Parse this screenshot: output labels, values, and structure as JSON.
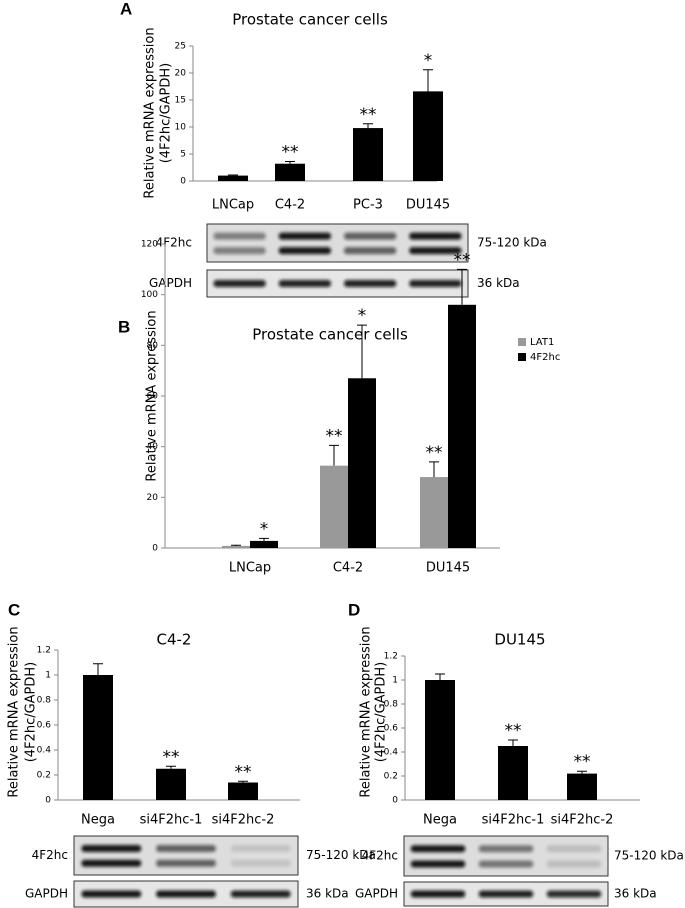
{
  "chart_data": [
    {
      "type": "bar",
      "panel": "A",
      "title": "Prostate cancer cells",
      "ylabel": [
        "Relative mRNA expression",
        "(4F2hc/GAPDH)"
      ],
      "categories": [
        "LNCap",
        "C4-2",
        "PC-3",
        "DU145"
      ],
      "values": [
        1,
        3.2,
        9.8,
        16.6
      ],
      "errors": [
        0.1,
        0.4,
        0.8,
        4
      ],
      "significance": [
        null,
        "**",
        "**",
        "*"
      ],
      "color": "#000000",
      "ylim": [
        0,
        25
      ],
      "yticks": [
        0,
        5,
        10,
        15,
        20,
        25
      ],
      "blots": [
        {
          "label": "4F2hc",
          "size": "75-120 kDa"
        },
        {
          "label": "GAPDH",
          "size": "36 kDa"
        }
      ]
    },
    {
      "type": "bar",
      "panel": "B",
      "title": "Prostate cancer cells",
      "ylabel": [
        "Relative mRNA expression"
      ],
      "categories": [
        "LNCap",
        "C4-2",
        "DU145"
      ],
      "series": [
        {
          "name": "LAT1",
          "color": "#999999",
          "values": [
            0.8,
            32.5,
            28
          ],
          "errors": [
            0.3,
            8,
            6
          ],
          "significance": [
            null,
            "**",
            "**"
          ]
        },
        {
          "name": "4F2hc",
          "color": "#000000",
          "values": [
            2.8,
            67,
            96
          ],
          "errors": [
            1,
            21,
            14
          ],
          "significance": [
            "*",
            "*",
            "**"
          ]
        }
      ],
      "ylim": [
        0,
        120
      ],
      "yticks": [
        0,
        20,
        40,
        60,
        80,
        100,
        120
      ],
      "legend": "top-right"
    },
    {
      "type": "bar",
      "panel": "C",
      "title": "C4-2",
      "ylabel": [
        "Relative mRNA expression",
        "(4F2hc/GAPDH)"
      ],
      "categories": [
        "Nega",
        "si4F2hc-1",
        "si4F2hc-2"
      ],
      "values": [
        1,
        0.25,
        0.14
      ],
      "errors": [
        0.09,
        0.02,
        0.01
      ],
      "significance": [
        null,
        "**",
        "**"
      ],
      "color": "#000000",
      "ylim": [
        0,
        1.2
      ],
      "yticks": [
        0,
        0.2,
        0.4,
        0.6,
        0.8,
        1,
        1.2
      ],
      "blots": [
        {
          "label": "4F2hc",
          "size": "75-120 kDa"
        },
        {
          "label": "GAPDH",
          "size": "36 kDa"
        }
      ]
    },
    {
      "type": "bar",
      "panel": "D",
      "title": "DU145",
      "ylabel": [
        "Relative mRNA expression",
        "(4F2hc/GAPDH)"
      ],
      "categories": [
        "Nega",
        "si4F2hc-1",
        "si4F2hc-2"
      ],
      "values": [
        1,
        0.45,
        0.22
      ],
      "errors": [
        0.05,
        0.05,
        0.02
      ],
      "significance": [
        null,
        "**",
        "**"
      ],
      "color": "#000000",
      "ylim": [
        0,
        1.2
      ],
      "yticks": [
        0,
        0.2,
        0.4,
        0.6,
        0.8,
        1,
        1.2
      ],
      "blots": [
        {
          "label": "4F2hc",
          "size": "75-120 kDa"
        },
        {
          "label": "GAPDH",
          "size": "36 kDa"
        }
      ]
    }
  ]
}
